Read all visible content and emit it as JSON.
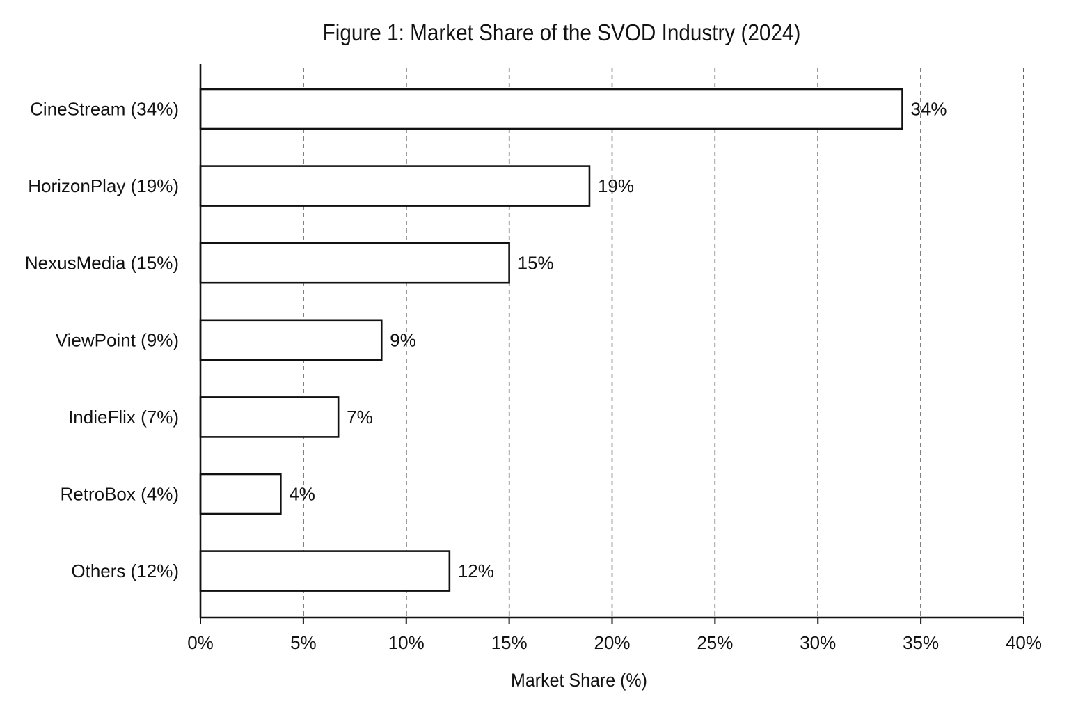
{
  "chart_data": {
    "type": "bar",
    "orientation": "horizontal",
    "title": "Figure 1: Market Share of the SVOD Industry (2024)",
    "xlabel": "Market Share (%)",
    "ylabel": "",
    "categories": [
      "CineStream (34%)",
      "HorizonPlay (19%)",
      "NexusMedia (15%)",
      "ViewPoint (9%)",
      "IndieFlix (7%)",
      "RetroBox (4%)",
      "Others (12%)"
    ],
    "values": [
      34.1,
      18.9,
      15.0,
      8.8,
      6.7,
      3.9,
      12.1
    ],
    "data_labels": [
      "34%",
      "19%",
      "15%",
      "9%",
      "7%",
      "4%",
      "12%"
    ],
    "xlim": [
      0,
      40
    ],
    "xticks": [
      0,
      5,
      10,
      15,
      20,
      25,
      30,
      35,
      40
    ],
    "xtick_labels": [
      "0%",
      "5%",
      "10%",
      "15%",
      "20%",
      "25%",
      "30%",
      "35%",
      "40%"
    ],
    "grid": "vertical-dashed",
    "legend": "none",
    "colors": {
      "bar_fill": "#ffffff",
      "bar_stroke": "#111111",
      "axis": "#111111",
      "grid": "#222222",
      "text": "#111111"
    }
  }
}
